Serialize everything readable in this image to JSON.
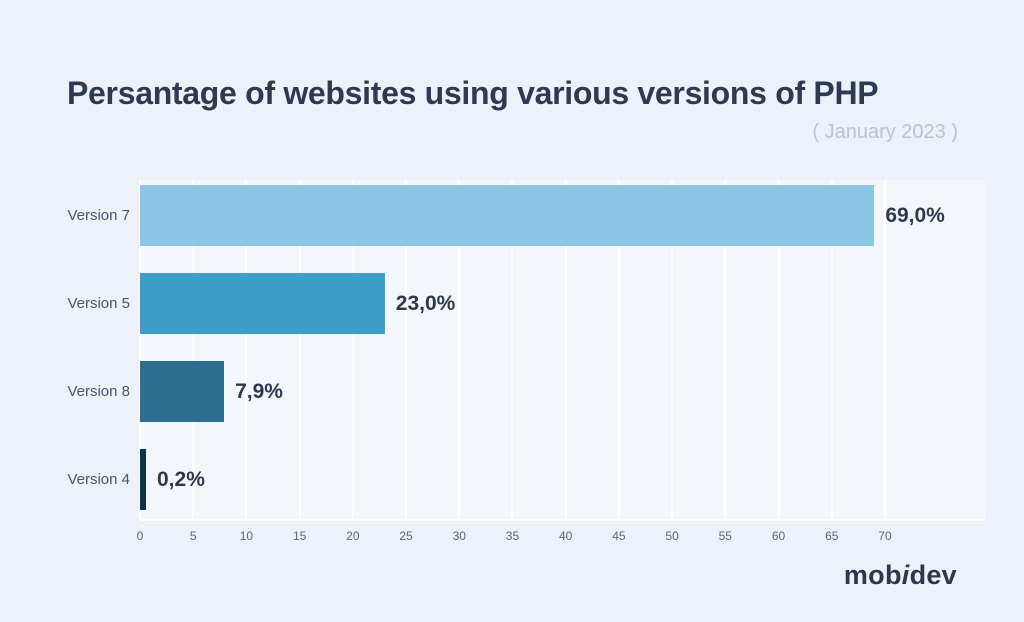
{
  "header": {
    "title": "Persantage of websites using various versions of PHP",
    "subtitle": "( January 2023 )"
  },
  "chart_data": {
    "type": "bar",
    "orientation": "horizontal",
    "title": "Persantage of websites using various versions of PHP",
    "subtitle": "( January 2023 )",
    "categories": [
      "Version 7",
      "Version 5",
      "Version 8",
      "Version 4"
    ],
    "values": [
      69.0,
      23.0,
      7.9,
      0.2
    ],
    "value_labels": [
      "69,0%",
      "23,0%",
      "7,9%",
      "0,2%"
    ],
    "bar_colors": [
      "#8bc6e7",
      "#3f9dca",
      "#2d6e93",
      "#0d3348"
    ],
    "x_ticks": [
      0,
      5,
      10,
      15,
      20,
      25,
      30,
      35,
      40,
      45,
      50,
      55,
      60,
      65,
      70
    ],
    "xlim": [
      0,
      79.4
    ],
    "grid": true,
    "gridline_color": "#ffffff",
    "plot_background": "#f3f7fc",
    "page_background": "#ecf1fa",
    "legend": false
  },
  "footer": {
    "logo_part1": "mob",
    "logo_part2": "i",
    "logo_part3": "dev"
  }
}
